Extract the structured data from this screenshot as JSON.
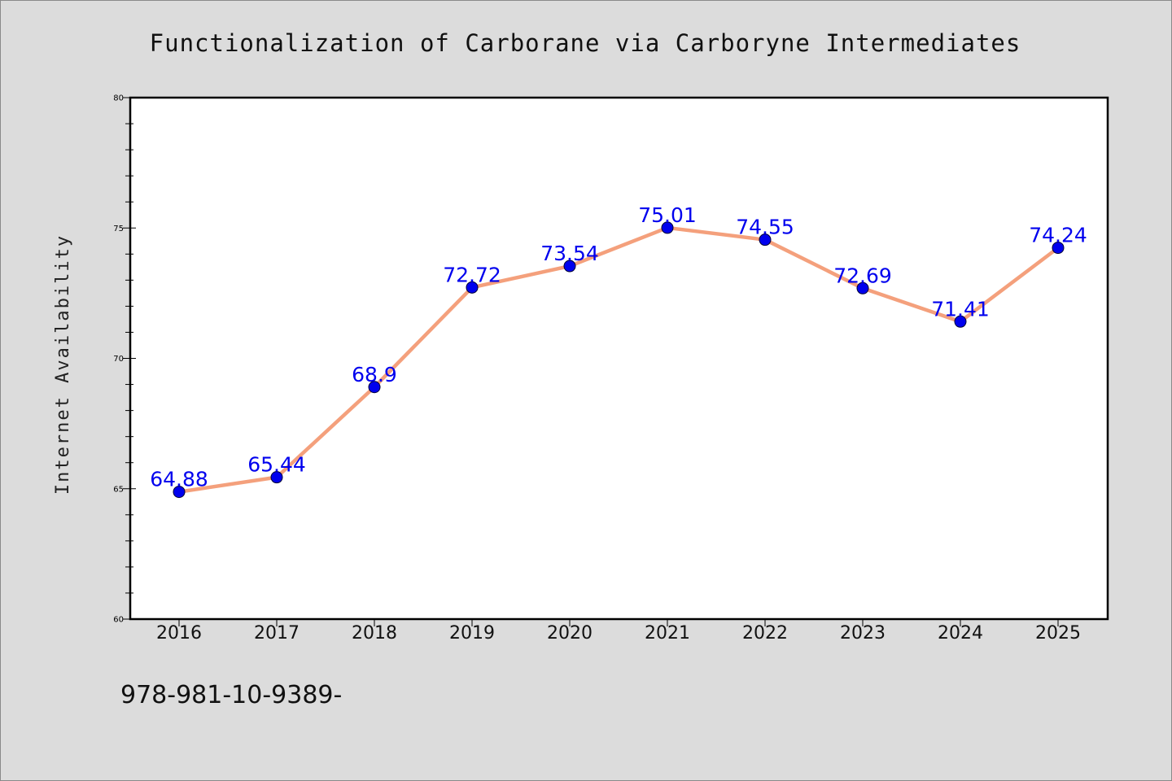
{
  "chart_data": {
    "type": "line",
    "title": "Functionalization of Carborane via Carboryne Intermediates",
    "xlabel": "",
    "ylabel": "Internet Availability",
    "categories": [
      "2016",
      "2017",
      "2018",
      "2019",
      "2020",
      "2021",
      "2022",
      "2023",
      "2024",
      "2025"
    ],
    "series": [
      {
        "values": [
          64.88,
          65.44,
          68.9,
          72.72,
          73.54,
          75.01,
          74.55,
          72.69,
          71.41,
          74.24
        ],
        "labels": [
          "64.88",
          "65.44",
          "68.9",
          "72.72",
          "73.54",
          "75.01",
          "74.55",
          "72.69",
          "71.41",
          "74.24"
        ]
      }
    ],
    "ylim": [
      60,
      80
    ],
    "yticks": [
      "60",
      "65",
      "70",
      "75",
      "80"
    ],
    "grid": false,
    "legend": "none",
    "colors": {
      "line": "#f4a07c",
      "marker_fill": "#0000ee",
      "marker_edge": "#000033",
      "labels": "#0000ee",
      "plot_bg": "#ffffff",
      "figure_bg": "#dcdcdc"
    }
  },
  "footer_text": "978-981-10-9389-"
}
